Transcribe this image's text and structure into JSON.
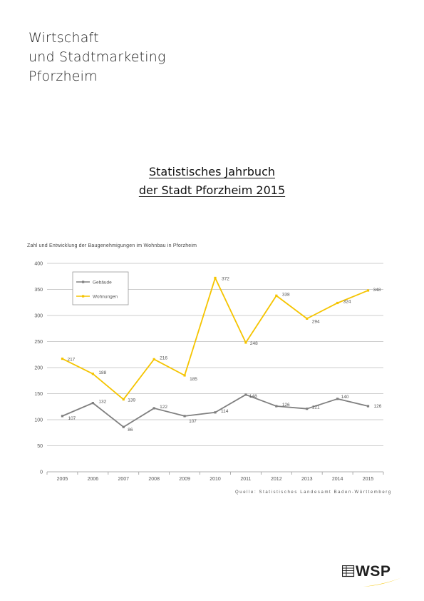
{
  "header": {
    "org_lines": [
      "Wirtschaft",
      "und Stadtmarketing",
      "Pforzheim"
    ],
    "doc_title_lines": [
      "Statistisches Jahrbuch",
      "der Stadt Pforzheim 2015"
    ]
  },
  "caption": "Zahl und Entwicklung der Baugenehmigungen im Wohnbau in Pforzheim",
  "source_note": "Quelle: Statistisches Landesamt Baden-Württemberg",
  "logo": {
    "text": "WSP",
    "accent_color": "#f5c400"
  },
  "colors": {
    "gebaeude": "#808080",
    "wohnungen": "#f5c400",
    "grid": "#bdbdbd",
    "axis": "#999999"
  },
  "chart_data": {
    "type": "line",
    "categories": [
      "2005",
      "2006",
      "2007",
      "2008",
      "2009",
      "2010",
      "2011",
      "2012",
      "2013",
      "2014",
      "2015"
    ],
    "series": [
      {
        "name": "Gebäude",
        "values": [
          107,
          132,
          86,
          122,
          107,
          114,
          148,
          126,
          121,
          140,
          126
        ]
      },
      {
        "name": "Wohnungen",
        "values": [
          217,
          188,
          139,
          216,
          185,
          372,
          248,
          338,
          294,
          324,
          348
        ]
      }
    ],
    "y_ticks": [
      0,
      50,
      100,
      150,
      200,
      250,
      300,
      350,
      400
    ],
    "ylim": [
      0,
      400
    ],
    "grid": true,
    "legend_position": "top-left"
  }
}
